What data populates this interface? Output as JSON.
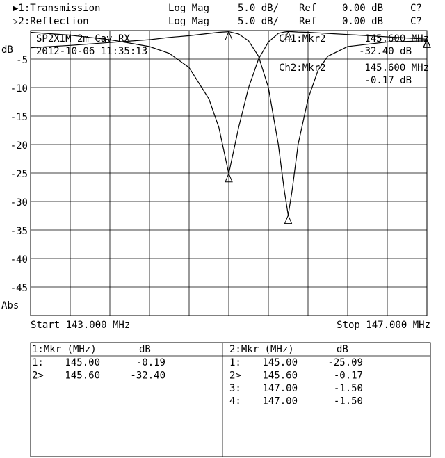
{
  "header": {
    "rows": [
      [
        "▶1:Transmission",
        "Log Mag",
        "5.0 dB/",
        "Ref",
        "0.00 dB",
        "C?"
      ],
      [
        "▷2:Reflection",
        "Log Mag",
        "5.0 dB/",
        "Ref",
        "0.00 dB",
        "C?"
      ]
    ]
  },
  "chart_data": {
    "type": "line",
    "y_unit": "dB",
    "y_format": "Abs",
    "start_label": "Start 143.000 MHz",
    "stop_label": "Stop 147.000 MHz",
    "annotations": [
      "SP2XIM 2m Cav  RX",
      "2012-10-06 11:35:13"
    ],
    "marker_readouts": [
      [
        "Ch1:Mkr2",
        "145.600 MHz",
        "-32.40 dB"
      ],
      [
        "Ch2:Mkr2",
        "145.600 MHz",
        "-0.17 dB"
      ]
    ],
    "x": [
      143.0,
      143.4,
      143.8,
      144.2,
      144.4,
      144.6,
      144.8,
      144.9,
      145.0,
      145.1,
      145.2,
      145.3,
      145.4,
      145.5,
      145.56,
      145.6,
      145.64,
      145.7,
      145.8,
      145.9,
      146.0,
      146.2,
      146.6,
      147.0
    ],
    "series": [
      {
        "name": "Transmission",
        "color": "#000000",
        "values": [
          -3.0,
          -2.6,
          -2.1,
          -1.6,
          -1.2,
          -0.9,
          -0.5,
          -0.3,
          -0.19,
          -0.6,
          -1.8,
          -4.5,
          -10,
          -20,
          -28,
          -32.4,
          -28,
          -20,
          -12,
          -7,
          -4.5,
          -2.8,
          -2.0,
          -1.8
        ]
      },
      {
        "name": "Reflection",
        "color": "#000000",
        "values": [
          -0.3,
          -0.8,
          -1.6,
          -2.8,
          -4,
          -6.5,
          -12,
          -17,
          -25.09,
          -17,
          -10,
          -5,
          -2,
          -0.5,
          -0.25,
          -0.17,
          -0.2,
          -0.25,
          -0.3,
          -0.4,
          -0.5,
          -0.7,
          -1.1,
          -1.5
        ]
      }
    ],
    "xlim": [
      143,
      147
    ],
    "xticks": [
      143,
      143.4,
      143.8,
      144.2,
      144.6,
      145,
      145.4,
      145.8,
      146.2,
      146.6,
      147
    ],
    "ylim": [
      -50,
      0
    ],
    "yticks": [
      -5,
      -10,
      -15,
      -20,
      -25,
      -30,
      -35,
      -40,
      -45
    ],
    "grid": true
  },
  "marker_tables": [
    {
      "header": [
        "1:Mkr (MHz)",
        "dB"
      ],
      "rows": [
        [
          "1:",
          "145.00",
          "-0.19"
        ],
        [
          "2>",
          "145.60",
          "-32.40"
        ]
      ]
    },
    {
      "header": [
        "2:Mkr (MHz)",
        "dB"
      ],
      "rows": [
        [
          "1:",
          "145.00",
          "-25.09"
        ],
        [
          "2>",
          "145.60",
          "-0.17"
        ],
        [
          "3:",
          "147.00",
          "-1.50"
        ],
        [
          "4:",
          "147.00",
          "-1.50"
        ]
      ]
    }
  ]
}
